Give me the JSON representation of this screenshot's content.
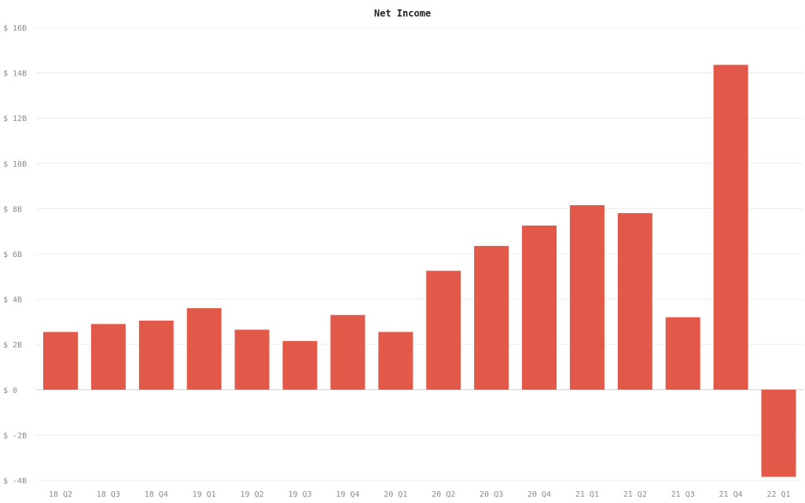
{
  "chart_data": {
    "type": "bar",
    "title": "Net Income",
    "xlabel": "",
    "ylabel": "",
    "categories": [
      "18 Q2",
      "18 Q3",
      "18 Q4",
      "19 Q1",
      "19 Q2",
      "19 Q3",
      "19 Q4",
      "20 Q1",
      "20 Q2",
      "20 Q3",
      "20 Q4",
      "21 Q1",
      "21 Q2",
      "21 Q3",
      "21 Q4",
      "22 Q1"
    ],
    "values": [
      2.55,
      2.9,
      3.05,
      3.6,
      2.65,
      2.15,
      3.3,
      2.55,
      5.25,
      6.35,
      7.25,
      8.15,
      7.8,
      3.2,
      14.35,
      -3.85
    ],
    "unit": "billion USD",
    "ylim": [
      -4,
      16
    ],
    "yticks": [
      16,
      14,
      12,
      10,
      8,
      6,
      4,
      2,
      0,
      -2,
      -4
    ],
    "ytick_labels": [
      "$ 16B",
      "$ 14B",
      "$ 12B",
      "$ 10B",
      "$ 8B",
      "$ 6B",
      "$ 4B",
      "$ 2B",
      "$ 0",
      "$ -2B",
      "$ -4B"
    ],
    "grid": true,
    "colors": {
      "bar": "#e05040"
    }
  }
}
